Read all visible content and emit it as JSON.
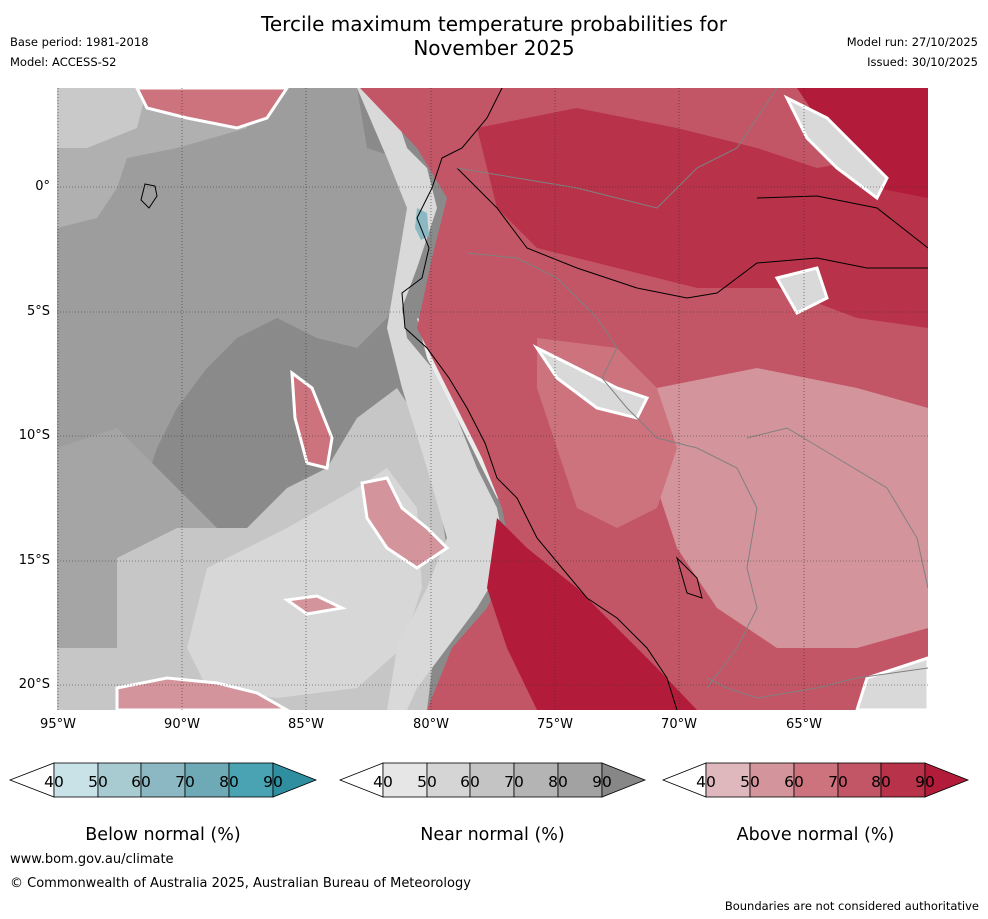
{
  "title_line1": "Tercile maximum temperature probabilities for",
  "title_line2": "November 2025",
  "base_period": "Base period: 1981-2018",
  "model": "Model: ACCESS-S2",
  "model_run": "Model run: 27/10/2025",
  "issued": "Issued: 30/10/2025",
  "map": {
    "lat_labels": [
      "0°",
      "5°S",
      "10°S",
      "15°S",
      "20°S"
    ],
    "lon_labels": [
      "95°W",
      "90°W",
      "85°W",
      "80°W",
      "75°W",
      "70°W",
      "65°W"
    ]
  },
  "colorbars": [
    {
      "title": "Below normal (%)",
      "ticks": [
        "40",
        "50",
        "60",
        "70",
        "80",
        "90"
      ],
      "colors": [
        "#ffffff",
        "#c8e2e8",
        "#a8cbd1",
        "#8bb8c2",
        "#6eaab6",
        "#4aa3b2",
        "#2f8fa0"
      ]
    },
    {
      "title": "Near normal (%)",
      "ticks": [
        "40",
        "50",
        "60",
        "70",
        "80",
        "90"
      ],
      "colors": [
        "#ffffff",
        "#e6e6e6",
        "#d5d5d5",
        "#c4c4c4",
        "#b4b4b4",
        "#a2a2a2",
        "#878787"
      ]
    },
    {
      "title": "Above normal (%)",
      "ticks": [
        "40",
        "50",
        "60",
        "70",
        "80",
        "90"
      ],
      "colors": [
        "#ffffff",
        "#dfb8bd",
        "#d4949c",
        "#cc737e",
        "#c35666",
        "#b8334a",
        "#b21c3a"
      ]
    }
  ],
  "footer_url": "www.bom.gov.au/climate",
  "footer_copyright": "© Commonwealth of Australia 2025, Australian Bureau of Meteorology",
  "footer_note": "Boundaries are not considered authoritative"
}
